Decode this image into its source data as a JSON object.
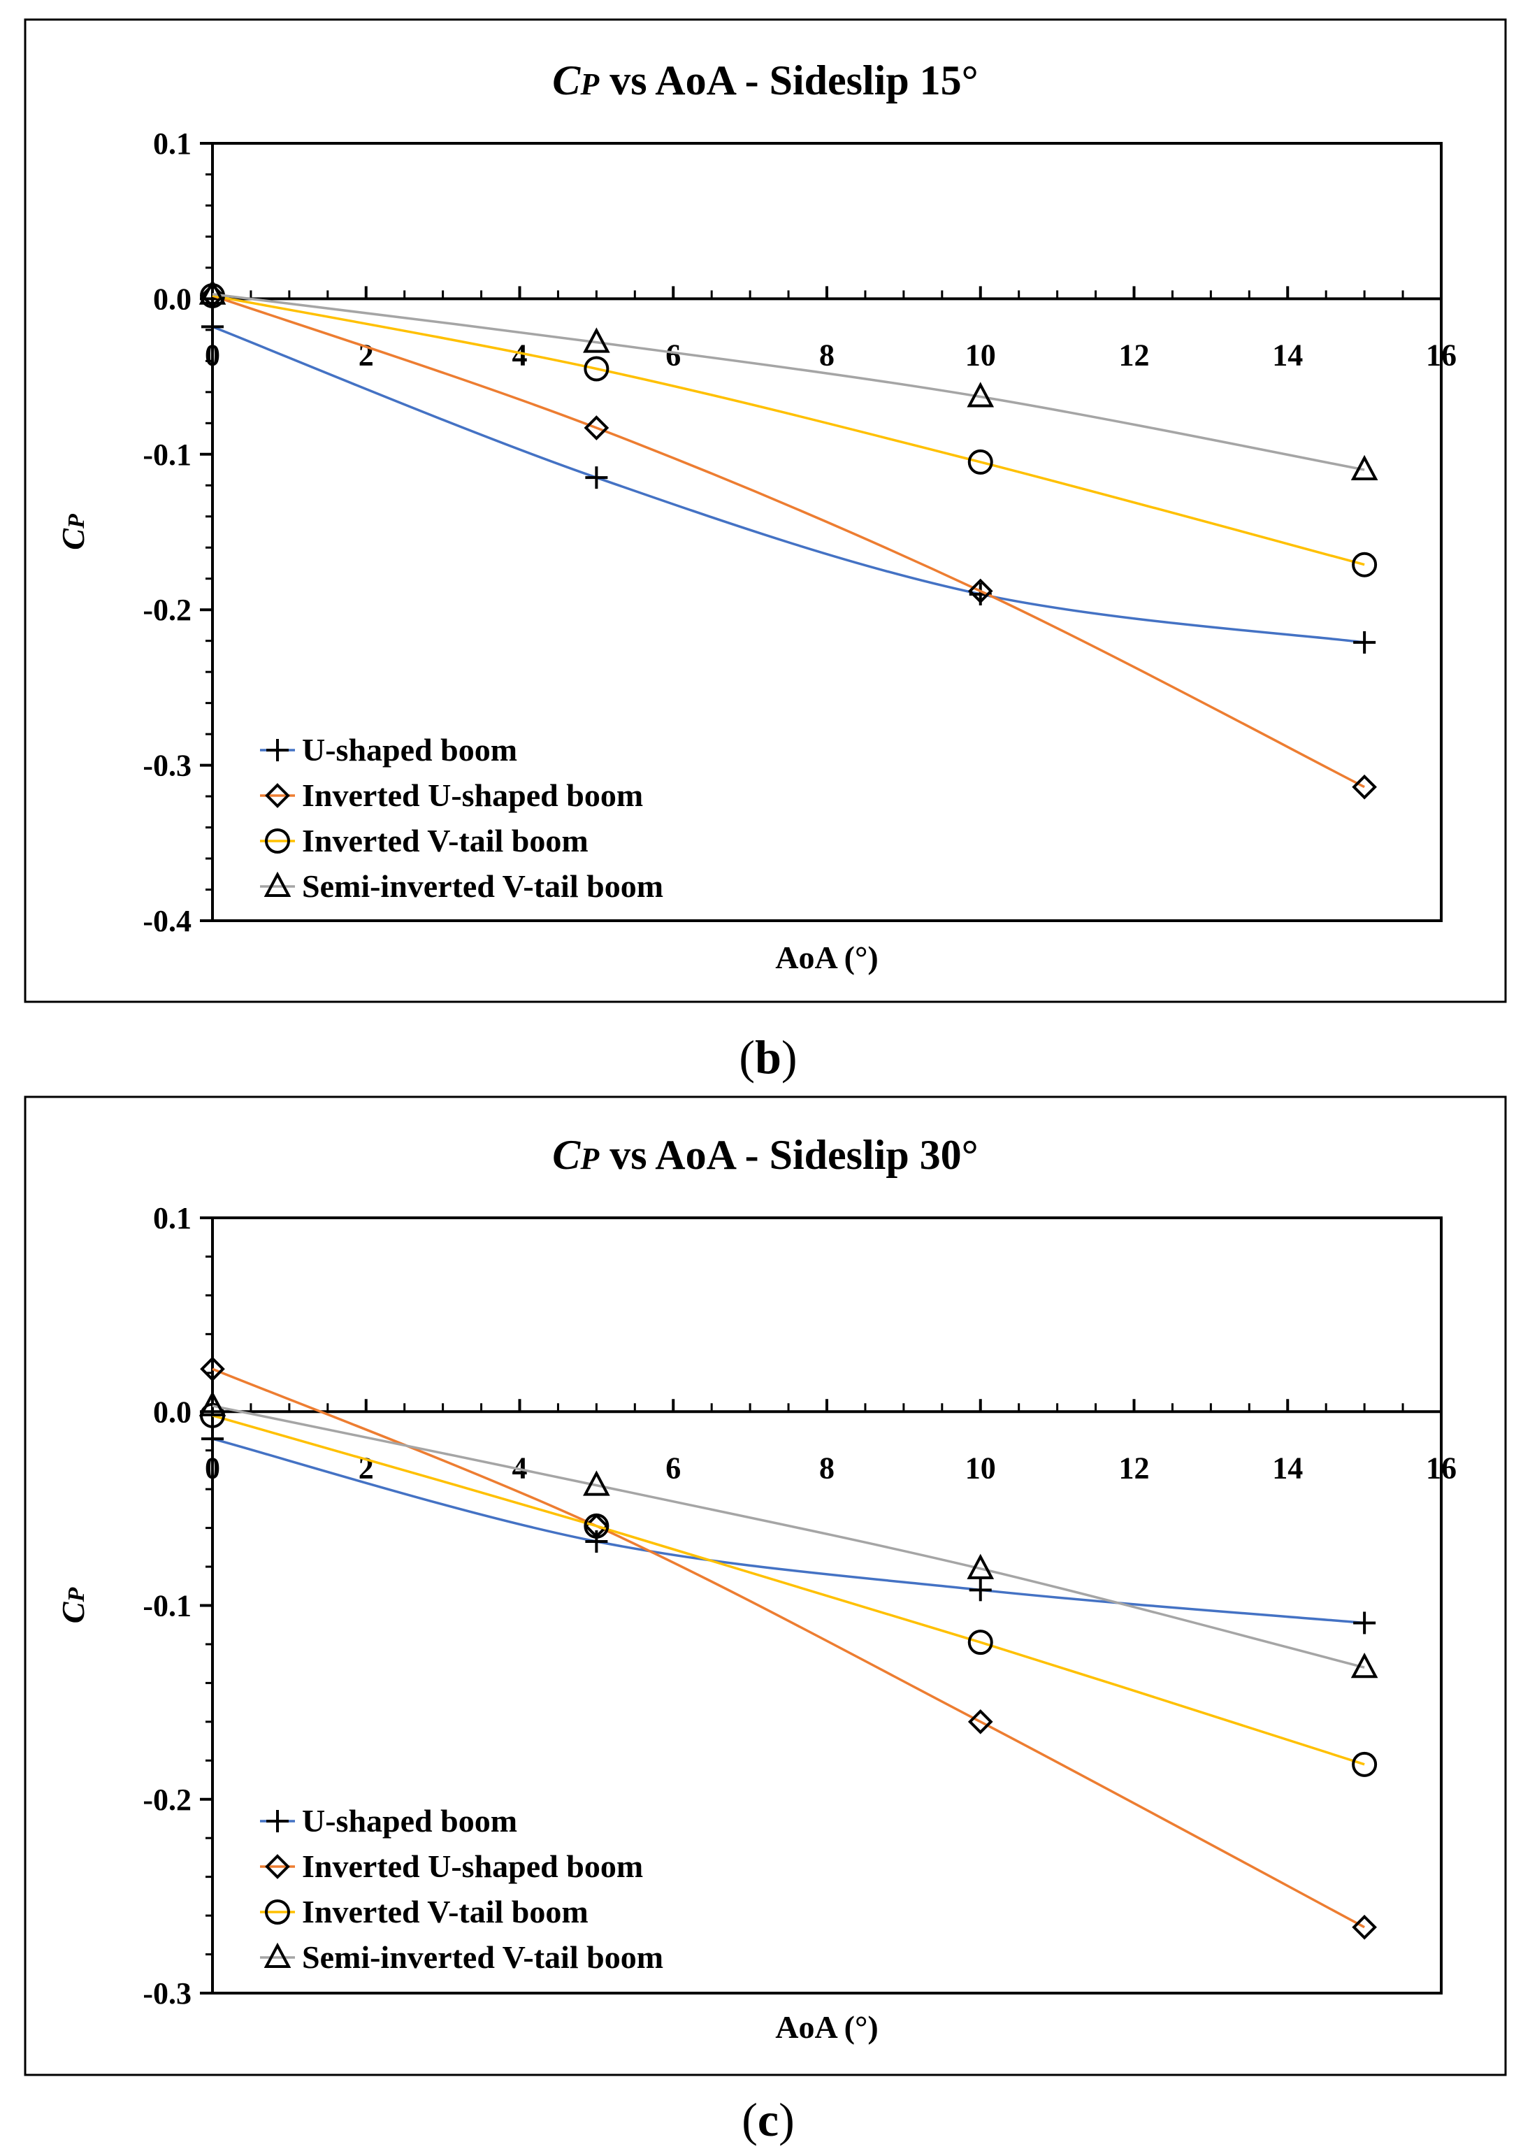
{
  "chart_data": [
    {
      "type": "line",
      "panel_label": "b",
      "title_symbol": "C",
      "title_sub": "P",
      "title_rest": " vs AoA - Sideslip 15°",
      "xlabel": "AoA (°)",
      "ylabel_symbol": "C",
      "ylabel_sub": "P",
      "xlim": [
        0,
        16
      ],
      "ylim": [
        -0.4,
        0.1
      ],
      "xticks": [
        0,
        2,
        4,
        6,
        8,
        10,
        12,
        14,
        16
      ],
      "yticks": [
        0.1,
        0.0,
        -0.1,
        -0.2,
        -0.3,
        -0.4
      ],
      "ytick_labels": [
        "0.1",
        "0.0",
        "-0.1",
        "-0.2",
        "-0.3",
        "-0.4"
      ],
      "legend_position": "bottom-left",
      "x": [
        0,
        5,
        10,
        15
      ],
      "series": [
        {
          "name": "U-shaped boom",
          "color": "#4472C4",
          "marker": "plus",
          "values": [
            -0.018,
            -0.115,
            -0.19,
            -0.221
          ]
        },
        {
          "name": "Inverted U-shaped boom",
          "color": "#ED7D31",
          "marker": "diamond",
          "values": [
            0.002,
            -0.083,
            -0.188,
            -0.314
          ]
        },
        {
          "name": "Inverted V-tail boom",
          "color": "#FFC000",
          "marker": "circle",
          "values": [
            0.002,
            -0.045,
            -0.105,
            -0.171
          ]
        },
        {
          "name": "Semi-inverted V-tail boom",
          "color": "#A5A5A5",
          "marker": "triangle",
          "values": [
            0.003,
            -0.028,
            -0.063,
            -0.11
          ]
        }
      ]
    },
    {
      "type": "line",
      "panel_label": "c",
      "title_symbol": "C",
      "title_sub": "P",
      "title_rest": " vs AoA - Sideslip 30°",
      "xlabel": "AoA (°)",
      "ylabel_symbol": "C",
      "ylabel_sub": "P",
      "xlim": [
        0,
        16
      ],
      "ylim": [
        -0.3,
        0.1
      ],
      "xticks": [
        0,
        2,
        4,
        6,
        8,
        10,
        12,
        14,
        16
      ],
      "yticks": [
        0.1,
        0.0,
        -0.1,
        -0.2,
        -0.3
      ],
      "ytick_labels": [
        "0.1",
        "0.0",
        "-0.1",
        "-0.2",
        "-0.3"
      ],
      "legend_position": "bottom-left",
      "x": [
        0,
        5,
        10,
        15
      ],
      "series": [
        {
          "name": "U-shaped boom",
          "color": "#4472C4",
          "marker": "plus",
          "values": [
            -0.014,
            -0.067,
            -0.092,
            -0.109
          ]
        },
        {
          "name": "Inverted U-shaped boom",
          "color": "#ED7D31",
          "marker": "diamond",
          "values": [
            0.022,
            -0.059,
            -0.16,
            -0.266
          ]
        },
        {
          "name": "Inverted V-tail boom",
          "color": "#FFC000",
          "marker": "circle",
          "values": [
            -0.002,
            -0.059,
            -0.119,
            -0.182
          ]
        },
        {
          "name": "Semi-inverted V-tail boom",
          "color": "#A5A5A5",
          "marker": "triangle",
          "values": [
            0.003,
            -0.038,
            -0.081,
            -0.132
          ]
        }
      ]
    }
  ]
}
